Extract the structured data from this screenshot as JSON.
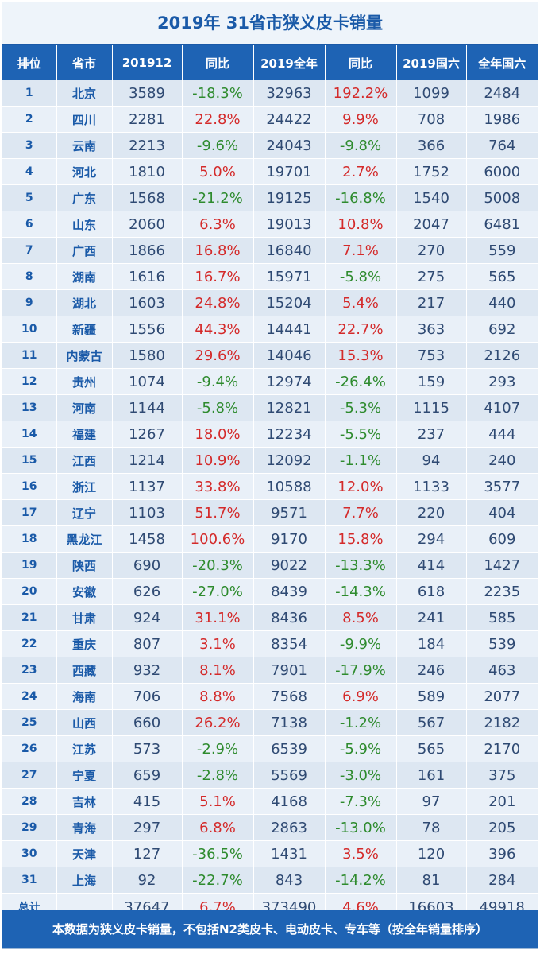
{
  "title": "2019年 31省市狭义皮卡销量",
  "headers": [
    "排位",
    "省市",
    "201912",
    "同比",
    "2019全年",
    "同比",
    "2019国六",
    "全年国六"
  ],
  "rows": [
    {
      "rank": "1",
      "province": "北京",
      "dec": "3589",
      "dec_yoy": "-18.3%",
      "year": "32963",
      "year_yoy": "192.2%",
      "cn6_2019": "1099",
      "cn6_full": "2484"
    },
    {
      "rank": "2",
      "province": "四川",
      "dec": "2281",
      "dec_yoy": "22.8%",
      "year": "24422",
      "year_yoy": "9.9%",
      "cn6_2019": "708",
      "cn6_full": "1986"
    },
    {
      "rank": "3",
      "province": "云南",
      "dec": "2213",
      "dec_yoy": "-9.6%",
      "year": "24043",
      "year_yoy": "-9.8%",
      "cn6_2019": "366",
      "cn6_full": "764"
    },
    {
      "rank": "4",
      "province": "河北",
      "dec": "1810",
      "dec_yoy": "5.0%",
      "year": "19701",
      "year_yoy": "2.7%",
      "cn6_2019": "1752",
      "cn6_full": "6000"
    },
    {
      "rank": "5",
      "province": "广东",
      "dec": "1568",
      "dec_yoy": "-21.2%",
      "year": "19125",
      "year_yoy": "-16.8%",
      "cn6_2019": "1540",
      "cn6_full": "5008"
    },
    {
      "rank": "6",
      "province": "山东",
      "dec": "2060",
      "dec_yoy": "6.3%",
      "year": "19013",
      "year_yoy": "10.8%",
      "cn6_2019": "2047",
      "cn6_full": "6481"
    },
    {
      "rank": "7",
      "province": "广西",
      "dec": "1866",
      "dec_yoy": "16.8%",
      "year": "16840",
      "year_yoy": "7.1%",
      "cn6_2019": "270",
      "cn6_full": "559"
    },
    {
      "rank": "8",
      "province": "湖南",
      "dec": "1616",
      "dec_yoy": "16.7%",
      "year": "15971",
      "year_yoy": "-5.8%",
      "cn6_2019": "275",
      "cn6_full": "565"
    },
    {
      "rank": "9",
      "province": "湖北",
      "dec": "1603",
      "dec_yoy": "24.8%",
      "year": "15204",
      "year_yoy": "5.4%",
      "cn6_2019": "217",
      "cn6_full": "440"
    },
    {
      "rank": "10",
      "province": "新疆",
      "dec": "1556",
      "dec_yoy": "44.3%",
      "year": "14441",
      "year_yoy": "22.7%",
      "cn6_2019": "363",
      "cn6_full": "692"
    },
    {
      "rank": "11",
      "province": "内蒙古",
      "dec": "1580",
      "dec_yoy": "29.6%",
      "year": "14046",
      "year_yoy": "15.3%",
      "cn6_2019": "753",
      "cn6_full": "2126"
    },
    {
      "rank": "12",
      "province": "贵州",
      "dec": "1074",
      "dec_yoy": "-9.4%",
      "year": "12974",
      "year_yoy": "-26.4%",
      "cn6_2019": "159",
      "cn6_full": "293"
    },
    {
      "rank": "13",
      "province": "河南",
      "dec": "1144",
      "dec_yoy": "-5.8%",
      "year": "12821",
      "year_yoy": "-5.3%",
      "cn6_2019": "1115",
      "cn6_full": "4107"
    },
    {
      "rank": "14",
      "province": "福建",
      "dec": "1267",
      "dec_yoy": "18.0%",
      "year": "12234",
      "year_yoy": "-5.5%",
      "cn6_2019": "237",
      "cn6_full": "444"
    },
    {
      "rank": "15",
      "province": "江西",
      "dec": "1214",
      "dec_yoy": "10.9%",
      "year": "12092",
      "year_yoy": "-1.1%",
      "cn6_2019": "94",
      "cn6_full": "240"
    },
    {
      "rank": "16",
      "province": "浙江",
      "dec": "1137",
      "dec_yoy": "33.8%",
      "year": "10588",
      "year_yoy": "12.0%",
      "cn6_2019": "1133",
      "cn6_full": "3577"
    },
    {
      "rank": "17",
      "province": "辽宁",
      "dec": "1103",
      "dec_yoy": "51.7%",
      "year": "9571",
      "year_yoy": "7.7%",
      "cn6_2019": "220",
      "cn6_full": "404"
    },
    {
      "rank": "18",
      "province": "黑龙江",
      "dec": "1458",
      "dec_yoy": "100.6%",
      "year": "9170",
      "year_yoy": "15.8%",
      "cn6_2019": "294",
      "cn6_full": "609"
    },
    {
      "rank": "19",
      "province": "陕西",
      "dec": "690",
      "dec_yoy": "-20.3%",
      "year": "9022",
      "year_yoy": "-13.3%",
      "cn6_2019": "414",
      "cn6_full": "1427"
    },
    {
      "rank": "20",
      "province": "安徽",
      "dec": "626",
      "dec_yoy": "-27.0%",
      "year": "8439",
      "year_yoy": "-14.3%",
      "cn6_2019": "618",
      "cn6_full": "2235"
    },
    {
      "rank": "21",
      "province": "甘肃",
      "dec": "924",
      "dec_yoy": "31.1%",
      "year": "8436",
      "year_yoy": "8.5%",
      "cn6_2019": "241",
      "cn6_full": "585"
    },
    {
      "rank": "22",
      "province": "重庆",
      "dec": "807",
      "dec_yoy": "3.1%",
      "year": "8354",
      "year_yoy": "-9.9%",
      "cn6_2019": "184",
      "cn6_full": "539"
    },
    {
      "rank": "23",
      "province": "西藏",
      "dec": "932",
      "dec_yoy": "8.1%",
      "year": "7901",
      "year_yoy": "-17.9%",
      "cn6_2019": "246",
      "cn6_full": "463"
    },
    {
      "rank": "24",
      "province": "海南",
      "dec": "706",
      "dec_yoy": "8.8%",
      "year": "7568",
      "year_yoy": "6.9%",
      "cn6_2019": "589",
      "cn6_full": "2077"
    },
    {
      "rank": "25",
      "province": "山西",
      "dec": "660",
      "dec_yoy": "26.2%",
      "year": "7138",
      "year_yoy": "-1.2%",
      "cn6_2019": "567",
      "cn6_full": "2182"
    },
    {
      "rank": "26",
      "province": "江苏",
      "dec": "573",
      "dec_yoy": "-2.9%",
      "year": "6539",
      "year_yoy": "-5.9%",
      "cn6_2019": "565",
      "cn6_full": "2170"
    },
    {
      "rank": "27",
      "province": "宁夏",
      "dec": "659",
      "dec_yoy": "-2.8%",
      "year": "5569",
      "year_yoy": "-3.0%",
      "cn6_2019": "161",
      "cn6_full": "375"
    },
    {
      "rank": "28",
      "province": "吉林",
      "dec": "415",
      "dec_yoy": "5.1%",
      "year": "4168",
      "year_yoy": "-7.3%",
      "cn6_2019": "97",
      "cn6_full": "201"
    },
    {
      "rank": "29",
      "province": "青海",
      "dec": "297",
      "dec_yoy": "6.8%",
      "year": "2863",
      "year_yoy": "-13.0%",
      "cn6_2019": "78",
      "cn6_full": "205"
    },
    {
      "rank": "30",
      "province": "天津",
      "dec": "127",
      "dec_yoy": "-36.5%",
      "year": "1431",
      "year_yoy": "3.5%",
      "cn6_2019": "120",
      "cn6_full": "396"
    },
    {
      "rank": "31",
      "province": "上海",
      "dec": "92",
      "dec_yoy": "-22.7%",
      "year": "843",
      "year_yoy": "-14.2%",
      "cn6_2019": "81",
      "cn6_full": "284"
    }
  ],
  "total": {
    "label": "总计",
    "dec": "37647",
    "dec_yoy": "6.7%",
    "year": "373490",
    "year_yoy": "4.6%",
    "cn6_2019": "16603",
    "cn6_full": "49918"
  },
  "footnote": "本数据为狭义皮卡销量，不包括N2类皮卡、电动皮卡、专车等（按全年销量排序）",
  "colors": {
    "header_bg": "#1e63b4",
    "positive": "#d42a2a",
    "negative": "#2e8b2e",
    "text": "#2f4a73"
  }
}
